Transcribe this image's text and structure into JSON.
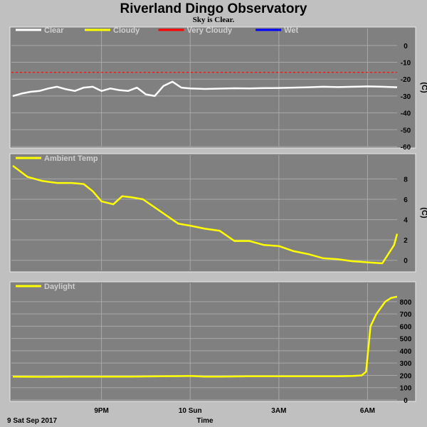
{
  "title": "Riverland Dingo Observatory",
  "subtitle": "Sky is Clear.",
  "date_label": "9 Sat Sep 2017",
  "x_axis_label": "Time",
  "x_ticks": [
    {
      "label": "9PM",
      "hour": 21
    },
    {
      "label": "10 Sun",
      "hour": 24
    },
    {
      "label": "3AM",
      "hour": 27
    },
    {
      "label": "6AM",
      "hour": 30
    }
  ],
  "colors": {
    "panel_bg": "#808080",
    "grid": "#a8a8a8",
    "clear": "#ffffff",
    "cloudy": "#ffff00",
    "very_cloudy": "#ff0000",
    "wet": "#0000ff"
  },
  "chart_data": [
    {
      "type": "line",
      "name": "sky",
      "x_unit": "hour",
      "ylabel": "(C)",
      "ylim": [
        -60,
        5
      ],
      "yticks": [
        0,
        -10,
        -20,
        -30,
        -40,
        -50,
        -60
      ],
      "grid": true,
      "legend_position": "top-left",
      "legend": [
        {
          "name": "Clear",
          "color": "#ffffff"
        },
        {
          "name": "Cloudy",
          "color": "#ffff00"
        },
        {
          "name": "Very Cloudy",
          "color": "#ff0000"
        },
        {
          "name": "Wet",
          "color": "#0000ff"
        }
      ],
      "thresholds": [
        {
          "name": "Very Cloudy",
          "value": -16,
          "color": "#ff0000",
          "style": "dashed"
        }
      ],
      "series": [
        {
          "name": "Clear",
          "color": "#ffffff",
          "x": [
            18.0,
            18.3,
            18.6,
            18.9,
            19.2,
            19.5,
            19.8,
            20.1,
            20.4,
            20.7,
            21.0,
            21.3,
            21.6,
            21.9,
            22.2,
            22.5,
            22.8,
            23.1,
            23.4,
            23.7,
            24.0,
            24.5,
            25.0,
            25.5,
            26.0,
            26.5,
            27.0,
            27.5,
            28.0,
            28.5,
            29.0,
            29.5,
            30.0,
            30.5,
            31.0
          ],
          "y": [
            -30,
            -28.5,
            -27.5,
            -27,
            -25.5,
            -24.5,
            -26,
            -27,
            -25,
            -24.5,
            -27,
            -25.5,
            -26.5,
            -27,
            -25,
            -29,
            -30,
            -24,
            -21.5,
            -25,
            -25.5,
            -25.8,
            -25.6,
            -25.4,
            -25.5,
            -25.3,
            -25.2,
            -25,
            -24.8,
            -24.5,
            -24.7,
            -24.5,
            -24.3,
            -24.5,
            -24.8
          ]
        }
      ]
    },
    {
      "type": "line",
      "name": "ambient",
      "x_unit": "hour",
      "ylabel": "(C)",
      "ylim": [
        -1,
        9.5
      ],
      "yticks": [
        8,
        6,
        4,
        2,
        0
      ],
      "grid": true,
      "legend_position": "top-left",
      "legend": [
        {
          "name": "Ambient Temp",
          "color": "#ffff00"
        }
      ],
      "series": [
        {
          "name": "Ambient Temp",
          "color": "#ffff00",
          "x": [
            18.0,
            18.5,
            19.0,
            19.5,
            20.0,
            20.4,
            20.7,
            21.0,
            21.4,
            21.7,
            22.0,
            22.4,
            22.8,
            23.2,
            23.6,
            24.0,
            24.5,
            25.0,
            25.5,
            26.0,
            26.5,
            27.0,
            27.5,
            28.0,
            28.5,
            29.0,
            29.5,
            30.0,
            30.5,
            30.9,
            31.0
          ],
          "y": [
            9.3,
            8.2,
            7.8,
            7.6,
            7.6,
            7.5,
            6.8,
            5.8,
            5.5,
            6.3,
            6.2,
            6.0,
            5.2,
            4.4,
            3.6,
            3.4,
            3.1,
            2.9,
            1.9,
            1.9,
            1.5,
            1.4,
            0.9,
            0.6,
            0.2,
            0.1,
            -0.1,
            -0.2,
            -0.3,
            1.5,
            2.6
          ]
        }
      ]
    },
    {
      "type": "line",
      "name": "daylight",
      "x_unit": "hour",
      "ylabel": "",
      "ylim": [
        0,
        880
      ],
      "yticks": [
        800,
        700,
        600,
        500,
        400,
        300,
        200,
        100,
        0
      ],
      "grid": true,
      "legend_position": "top-left",
      "legend": [
        {
          "name": "Daylight",
          "color": "#ffff00"
        }
      ],
      "series": [
        {
          "name": "Daylight",
          "color": "#ffff00",
          "x": [
            18.0,
            19.0,
            20.0,
            21.0,
            22.0,
            23.0,
            24.0,
            24.5,
            25.0,
            26.0,
            27.0,
            28.0,
            29.0,
            29.5,
            29.8,
            29.95,
            30.1,
            30.3,
            30.6,
            30.8,
            31.0
          ],
          "y": [
            190,
            188,
            190,
            190,
            190,
            192,
            195,
            190,
            190,
            192,
            193,
            192,
            192,
            195,
            200,
            230,
            600,
            700,
            800,
            830,
            840
          ]
        }
      ]
    }
  ]
}
